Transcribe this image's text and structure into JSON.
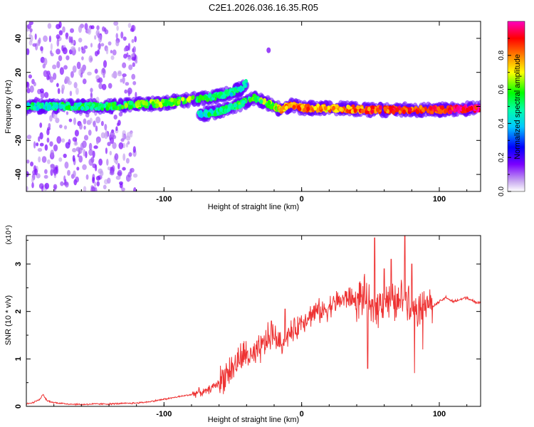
{
  "title": "C2E1.2026.036.16.35.R05",
  "chart_data": [
    {
      "type": "heatmap",
      "name": "spectrogram",
      "xlabel": "Height of straight line (km)",
      "ylabel": "Frequency (Hz)",
      "xlim": [
        -200,
        130
      ],
      "ylim": [
        -50,
        50
      ],
      "xticks": [
        -100,
        0,
        100
      ],
      "yticks": [
        -40,
        -20,
        0,
        20,
        40
      ],
      "colorbar": {
        "label": "Normalized spectral amplitude",
        "range": [
          0.0,
          1.0
        ],
        "ticks": [
          "0.0",
          "0.2",
          "0.4",
          "0.6",
          "0.8"
        ],
        "colormap": [
          "#ffffff",
          "#c8a8f0",
          "#7a00ff",
          "#0000ff",
          "#00c8ff",
          "#00ffaa",
          "#00ff00",
          "#ffff00",
          "#ff8000",
          "#ff0000",
          "#ff00c0"
        ]
      },
      "ridge_main": [
        {
          "x": -200,
          "y": 0,
          "a": 0.45
        },
        {
          "x": -180,
          "y": 0,
          "a": 0.5
        },
        {
          "x": -160,
          "y": 0,
          "a": 0.5
        },
        {
          "x": -140,
          "y": 0,
          "a": 0.55
        },
        {
          "x": -120,
          "y": 1,
          "a": 0.6
        },
        {
          "x": -100,
          "y": 2,
          "a": 0.6
        },
        {
          "x": -80,
          "y": 4,
          "a": 0.6
        },
        {
          "x": -60,
          "y": 6,
          "a": 0.5
        },
        {
          "x": -45,
          "y": 10,
          "a": 0.45
        },
        {
          "x": -40,
          "y": 14,
          "a": 0.4
        }
      ],
      "ridge_secondary": [
        {
          "x": -75,
          "y": -5,
          "a": 0.45
        },
        {
          "x": -60,
          "y": -3,
          "a": 0.5
        },
        {
          "x": -45,
          "y": 1,
          "a": 0.55
        },
        {
          "x": -35,
          "y": 5,
          "a": 0.55
        },
        {
          "x": -28,
          "y": 3,
          "a": 0.6
        },
        {
          "x": -20,
          "y": 0,
          "a": 0.65
        },
        {
          "x": -15,
          "y": -2,
          "a": 0.75
        },
        {
          "x": -8,
          "y": 1,
          "a": 0.8
        },
        {
          "x": 0,
          "y": -1,
          "a": 0.8
        },
        {
          "x": 20,
          "y": -1,
          "a": 0.75
        },
        {
          "x": 50,
          "y": -2,
          "a": 0.85
        },
        {
          "x": 80,
          "y": -2,
          "a": 0.85
        },
        {
          "x": 100,
          "y": -2,
          "a": 0.9
        },
        {
          "x": 130,
          "y": -1,
          "a": 0.95
        }
      ],
      "scatter_region": {
        "x": [
          -200,
          -120
        ],
        "y": [
          -50,
          50
        ]
      }
    },
    {
      "type": "line",
      "name": "snr",
      "xlabel": "Height of straight line (km)",
      "ylabel": "SNR (10 * v/v)",
      "scale_label": "(x10⁴)",
      "xlim": [
        -200,
        130
      ],
      "ylim": [
        0,
        3.6
      ],
      "xticks": [
        -100,
        0,
        100
      ],
      "yticks": [
        0,
        1,
        2,
        3
      ],
      "color": "#ee3333",
      "series": [
        {
          "name": "SNR",
          "x": [
            -200,
            -195,
            -190,
            -188,
            -185,
            -180,
            -170,
            -160,
            -150,
            -140,
            -130,
            -120,
            -110,
            -100,
            -90,
            -80,
            -75,
            -70,
            -65,
            -60,
            -55,
            -50,
            -45,
            -40,
            -35,
            -30,
            -25,
            -20,
            -15,
            -10,
            -5,
            0,
            5,
            10,
            15,
            20,
            25,
            30,
            35,
            40,
            45,
            50,
            55,
            60,
            65,
            70,
            75,
            80,
            85,
            90,
            95,
            100,
            105,
            110,
            115,
            120,
            125,
            130
          ],
          "y": [
            0.05,
            0.08,
            0.15,
            0.25,
            0.12,
            0.08,
            0.05,
            0.04,
            0.05,
            0.05,
            0.06,
            0.07,
            0.1,
            0.15,
            0.2,
            0.25,
            0.3,
            0.3,
            0.4,
            0.5,
            0.7,
            0.8,
            1.0,
            1.1,
            1.0,
            1.2,
            1.4,
            1.5,
            1.3,
            1.5,
            1.6,
            1.8,
            1.9,
            2.0,
            2.0,
            2.1,
            2.2,
            2.25,
            2.3,
            2.2,
            2.35,
            2.0,
            2.1,
            2.3,
            2.2,
            2.15,
            2.4,
            2.2,
            2.1,
            2.3,
            2.1,
            2.2,
            2.3,
            2.2,
            2.25,
            2.3,
            2.2,
            2.2
          ]
        }
      ],
      "peaks": [
        {
          "x": 53,
          "y": 3.55
        },
        {
          "x": 75,
          "y": 3.6
        },
        {
          "x": 65,
          "y": 3.1
        },
        {
          "x": 60,
          "y": 2.9
        },
        {
          "x": 48,
          "y": 0.8
        },
        {
          "x": 82,
          "y": 0.7
        },
        {
          "x": 88,
          "y": 1.2
        },
        {
          "x": 80,
          "y": 3.0
        },
        {
          "x": -12,
          "y": 2.05
        },
        {
          "x": -22,
          "y": 1.8
        }
      ]
    }
  ]
}
